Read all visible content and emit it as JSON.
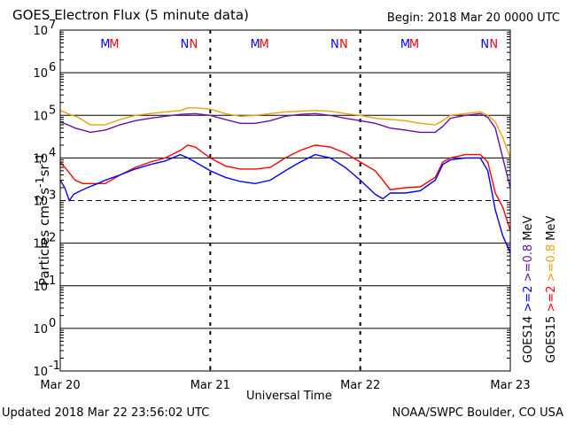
{
  "header": {
    "title": "GOES Electron Flux (5 minute data)",
    "begin": "Begin: 2018 Mar 20 0000 UTC"
  },
  "footer": {
    "updated": "Updated 2018 Mar 22 23:56:02 UTC",
    "credit": "NOAA/SWPC Boulder, CO USA"
  },
  "colors": {
    "goes14_ge2": "#0000ff",
    "goes15_ge2": "#ff0000",
    "goes14_ge08": "#6a0dad",
    "goes15_ge08": "#f0a000",
    "gridline": "#000000"
  },
  "chart_data": {
    "type": "line",
    "title": "GOES Electron Flux (5 minute data)",
    "xlabel": "Universal Time",
    "ylabel": "Particles cm⁻²s⁻¹sr⁻¹",
    "y_scale": "log",
    "ylim": [
      0.1,
      10000000
    ],
    "y_ticks": [
      {
        "exp": "-1",
        "value": 0.1
      },
      {
        "exp": "0",
        "value": 1
      },
      {
        "exp": "1",
        "value": 10
      },
      {
        "exp": "2",
        "value": 100
      },
      {
        "exp": "3",
        "value": 1000
      },
      {
        "exp": "4",
        "value": 10000
      },
      {
        "exp": "5",
        "value": 100000
      },
      {
        "exp": "6",
        "value": 1000000
      },
      {
        "exp": "7",
        "value": 10000000
      }
    ],
    "x_ticks": [
      "Mar 20",
      "Mar 21",
      "Mar 22",
      "Mar 23"
    ],
    "xlim_days": [
      0,
      3
    ],
    "threshold_line": 1000,
    "legend": {
      "left_column": [
        "GOES14",
        ">=2",
        ">=0.8",
        "MeV"
      ],
      "right_column": [
        "GOES15",
        ">=2",
        ">=0.8",
        "MeV"
      ]
    },
    "markers": [
      {
        "day": 0,
        "labels": [
          {
            "text": "M",
            "color": "#0000ff"
          },
          {
            "text": "M",
            "color": "#ff0000"
          }
        ]
      },
      {
        "day": 0,
        "labels": [
          {
            "text": "N",
            "color": "#0000ff"
          },
          {
            "text": "N",
            "color": "#ff0000"
          }
        ]
      },
      {
        "day": 1,
        "labels": [
          {
            "text": "M",
            "color": "#0000ff"
          },
          {
            "text": "M",
            "color": "#ff0000"
          }
        ]
      },
      {
        "day": 1,
        "labels": [
          {
            "text": "N",
            "color": "#0000ff"
          },
          {
            "text": "N",
            "color": "#ff0000"
          }
        ]
      },
      {
        "day": 2,
        "labels": [
          {
            "text": "M",
            "color": "#0000ff"
          },
          {
            "text": "M",
            "color": "#ff0000"
          }
        ]
      },
      {
        "day": 2,
        "labels": [
          {
            "text": "N",
            "color": "#0000ff"
          },
          {
            "text": "N",
            "color": "#ff0000"
          }
        ]
      }
    ],
    "series": [
      {
        "name": "GOES15 >=0.8 MeV",
        "color": "#f0a000",
        "x": [
          0,
          0.05,
          0.08,
          0.12,
          0.2,
          0.3,
          0.4,
          0.5,
          0.6,
          0.7,
          0.8,
          0.85,
          0.9,
          1.0,
          1.1,
          1.2,
          1.3,
          1.4,
          1.5,
          1.6,
          1.7,
          1.8,
          1.9,
          2.0,
          2.1,
          2.2,
          2.3,
          2.4,
          2.5,
          2.55,
          2.6,
          2.7,
          2.8,
          2.85,
          2.9,
          2.95,
          3.0
        ],
        "y": [
          130000,
          110000,
          100000,
          90000,
          60000,
          60000,
          80000,
          100000,
          110000,
          120000,
          130000,
          150000,
          150000,
          140000,
          110000,
          95000,
          100000,
          110000,
          120000,
          125000,
          130000,
          125000,
          110000,
          100000,
          85000,
          80000,
          75000,
          65000,
          60000,
          75000,
          100000,
          110000,
          120000,
          100000,
          70000,
          30000,
          10000
        ]
      },
      {
        "name": "GOES14 >=0.8 MeV",
        "color": "#6a0dad",
        "x": [
          0,
          0.05,
          0.1,
          0.15,
          0.2,
          0.3,
          0.4,
          0.5,
          0.6,
          0.7,
          0.8,
          0.9,
          1.0,
          1.1,
          1.2,
          1.3,
          1.4,
          1.5,
          1.6,
          1.7,
          1.8,
          1.9,
          2.0,
          2.1,
          2.2,
          2.3,
          2.4,
          2.5,
          2.55,
          2.6,
          2.7,
          2.8,
          2.85,
          2.9,
          2.95,
          3.0
        ],
        "y": [
          70000,
          60000,
          50000,
          45000,
          40000,
          45000,
          60000,
          75000,
          85000,
          95000,
          105000,
          110000,
          100000,
          80000,
          65000,
          65000,
          75000,
          95000,
          105000,
          110000,
          100000,
          85000,
          75000,
          65000,
          50000,
          45000,
          40000,
          40000,
          55000,
          85000,
          100000,
          110000,
          90000,
          50000,
          10000,
          2000
        ]
      },
      {
        "name": "GOES15 >=2 MeV",
        "color": "#ff0000",
        "x": [
          0,
          0.05,
          0.1,
          0.15,
          0.2,
          0.3,
          0.4,
          0.5,
          0.6,
          0.7,
          0.8,
          0.85,
          0.9,
          1.0,
          1.1,
          1.2,
          1.3,
          1.4,
          1.5,
          1.6,
          1.7,
          1.8,
          1.9,
          2.0,
          2.1,
          2.15,
          2.2,
          2.3,
          2.4,
          2.5,
          2.55,
          2.6,
          2.7,
          2.8,
          2.85,
          2.9,
          2.95,
          3.0
        ],
        "y": [
          8000,
          5000,
          3000,
          2500,
          2500,
          2500,
          4000,
          6000,
          8000,
          10000,
          15000,
          20000,
          18000,
          10000,
          6500,
          5500,
          5500,
          6000,
          10000,
          15000,
          20000,
          18000,
          13000,
          8000,
          5000,
          3000,
          1800,
          2000,
          2100,
          3500,
          8000,
          10000,
          12000,
          12000,
          8000,
          1500,
          700,
          200
        ]
      },
      {
        "name": "GOES14 >=2 MeV",
        "color": "#0000ff",
        "x": [
          0,
          0.03,
          0.06,
          0.09,
          0.12,
          0.18,
          0.25,
          0.3,
          0.4,
          0.5,
          0.6,
          0.7,
          0.8,
          0.85,
          0.9,
          1.0,
          1.1,
          1.2,
          1.3,
          1.4,
          1.5,
          1.6,
          1.7,
          1.8,
          1.9,
          2.0,
          2.1,
          2.15,
          2.2,
          2.3,
          2.4,
          2.5,
          2.55,
          2.6,
          2.7,
          2.8,
          2.85,
          2.9,
          2.95,
          3.0
        ],
        "y": [
          3000,
          2000,
          1000,
          1400,
          1600,
          2000,
          2500,
          3000,
          4000,
          5500,
          7000,
          8500,
          12000,
          10000,
          8000,
          5000,
          3500,
          2800,
          2500,
          3000,
          5000,
          8000,
          12000,
          10000,
          6000,
          3000,
          1400,
          1100,
          1500,
          1500,
          1700,
          3000,
          7000,
          9000,
          10000,
          10000,
          5000,
          600,
          150,
          60
        ]
      }
    ]
  }
}
